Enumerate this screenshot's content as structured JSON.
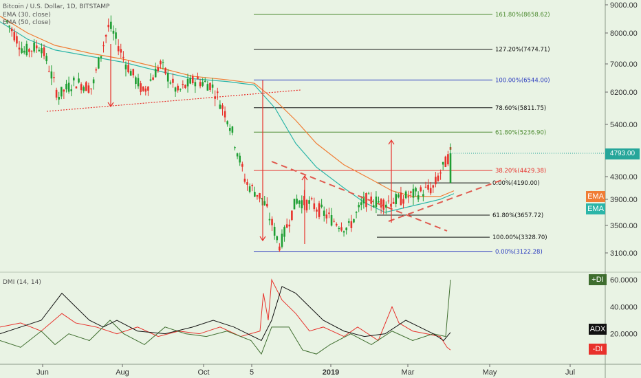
{
  "header": {
    "symbol_line": "Bitcoin / U.S. Dollar, 1D, BITSTAMP",
    "ema1": "EMA (30, close)",
    "ema2": "EMA (50, close)",
    "dmi": "DMI (14, 14)"
  },
  "price_axis": {
    "ticks": [
      "9000.00",
      "8000.00",
      "7000.00",
      "6200.00",
      "5400.00",
      "4300.00",
      "3900.00",
      "3500.00",
      "3100.00"
    ],
    "last_price": "4793.00",
    "last_price_color": "#26a69a",
    "ema_badges": [
      {
        "label": "EMA",
        "color": "#f07d35"
      },
      {
        "label": "EMA",
        "color": "#2bb5a8"
      }
    ]
  },
  "dmi_axis": {
    "ticks": [
      "60.0000",
      "40.0000",
      "20.0000"
    ],
    "badges": [
      {
        "label": "+DI",
        "color": "#3e6d2e"
      },
      {
        "label": "ADX",
        "color": "#111111"
      },
      {
        "label": "-DI",
        "color": "#e8312b"
      }
    ]
  },
  "time_axis": {
    "labels": [
      "Jun",
      "Aug",
      "Oct",
      "5",
      "2019",
      "Mar",
      "May",
      "Jul"
    ]
  },
  "fib_levels": [
    {
      "label": "161.80%(8658.62)",
      "price": 8658.62,
      "color": "#4c8a2f"
    },
    {
      "label": "127.20%(7474.71)",
      "price": 7474.71,
      "color": "#111111"
    },
    {
      "label": "100.00%(6544.00)",
      "price": 6544.0,
      "color": "#2a3bbf"
    },
    {
      "label": "78.60%(5811.75)",
      "price": 5811.75,
      "color": "#111111"
    },
    {
      "label": "61.80%(5236.90)",
      "price": 5236.9,
      "color": "#4c8a2f"
    },
    {
      "label": "38.20%(4429.38)",
      "price": 4429.38,
      "color": "#e8312b"
    },
    {
      "label": "0.00%(4190.00)",
      "price": 4190.0,
      "color": "#111111"
    },
    {
      "label": "61.80%(3657.72)",
      "price": 3657.72,
      "color": "#111111"
    },
    {
      "label": "100.00%(3328.70)",
      "price": 3328.7,
      "color": "#111111"
    },
    {
      "label": "0.00%(3122.28)",
      "price": 3122.28,
      "color": "#2a3bbf"
    }
  ],
  "chart_data": {
    "type": "candlestick",
    "symbol": "BTCUSD",
    "interval": "1D",
    "exchange": "BITSTAMP",
    "x_labels": [
      "Jun",
      "Aug",
      "Oct",
      "5",
      "2019",
      "Mar",
      "May",
      "Jul"
    ],
    "y_ticks": [
      9000,
      8000,
      7000,
      6200,
      5400,
      4300,
      3900,
      3500,
      3100
    ],
    "last_price": 4793.0,
    "price_path": [
      {
        "x": "May 2018",
        "y": 8400
      },
      {
        "x": "late May",
        "y": 7400
      },
      {
        "x": "Jun",
        "y": 7600
      },
      {
        "x": "late Jun",
        "y": 6100
      },
      {
        "x": "early Jul",
        "y": 6500
      },
      {
        "x": "mid Jul",
        "y": 6300
      },
      {
        "x": "late Jul",
        "y": 8300
      },
      {
        "x": "Aug",
        "y": 7000
      },
      {
        "x": "mid Aug",
        "y": 6200
      },
      {
        "x": "late Aug",
        "y": 7000
      },
      {
        "x": "Sep",
        "y": 6200
      },
      {
        "x": "Oct",
        "y": 6550
      },
      {
        "x": "early Nov",
        "y": 6400
      },
      {
        "x": "mid Nov",
        "y": 5500
      },
      {
        "x": "late Nov",
        "y": 4200
      },
      {
        "x": "Dec",
        "y": 3900
      },
      {
        "x": "mid Dec",
        "y": 3200
      },
      {
        "x": "late Dec",
        "y": 3900
      },
      {
        "x": "2019",
        "y": 3800
      },
      {
        "x": "mid Jan",
        "y": 3600
      },
      {
        "x": "early Feb",
        "y": 3450
      },
      {
        "x": "mid Feb",
        "y": 3900
      },
      {
        "x": "late Feb",
        "y": 3850
      },
      {
        "x": "Mar",
        "y": 3900
      },
      {
        "x": "mid Mar",
        "y": 4000
      },
      {
        "x": "late Mar",
        "y": 4100
      },
      {
        "x": "early Apr",
        "y": 4793
      }
    ],
    "dmi": {
      "plus_di_last": 60,
      "adx_last": 21,
      "minus_di_last": 8,
      "y_ticks": [
        60,
        40,
        20
      ]
    }
  }
}
